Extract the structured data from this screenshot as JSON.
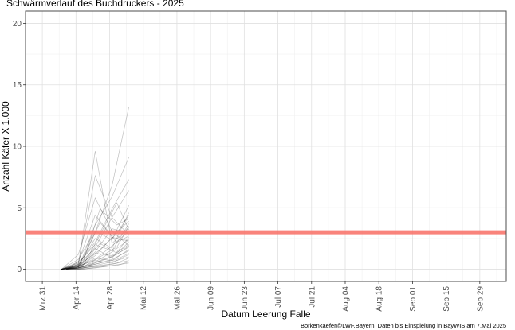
{
  "chart_data": {
    "type": "line",
    "title": "Schwärmverlauf des Buchdruckers - 2025",
    "xlabel": "Datum Leerung Falle",
    "ylabel": "Anzahl Käfer X 1.000",
    "caption": "Borkenkaefer@LWF.Bayern, Daten bis Einspielung in BayWIS am 7.Mai 2025",
    "xlim": [
      "2025-03-24",
      "2025-10-10"
    ],
    "ylim": [
      -1,
      21
    ],
    "x_tick_labels": [
      "Mrz 31",
      "Apr 14",
      "Apr 28",
      "Mai 12",
      "Mai 26",
      "Jun 09",
      "Jun 23",
      "Jul 07",
      "Jul 21",
      "Aug 04",
      "Aug 18",
      "Sep 01",
      "Sep 15",
      "Sep 29"
    ],
    "x_tick_dates": [
      "2025-03-31",
      "2025-04-14",
      "2025-04-28",
      "2025-05-12",
      "2025-05-26",
      "2025-06-09",
      "2025-06-23",
      "2025-07-07",
      "2025-07-21",
      "2025-08-04",
      "2025-08-18",
      "2025-09-01",
      "2025-09-15",
      "2025-09-29"
    ],
    "y_ticks": [
      0,
      5,
      10,
      15,
      20
    ],
    "threshold": {
      "value": 3,
      "color": "#f8766d"
    },
    "grid": true,
    "legend": "none",
    "series_color": "#000000",
    "series": [
      {
        "x": [
          "2025-04-08",
          "2025-04-15",
          "2025-04-22",
          "2025-04-29",
          "2025-05-06"
        ],
        "values": [
          0.0,
          0.3,
          9.6,
          2.1,
          3.4
        ]
      },
      {
        "x": [
          "2025-04-08",
          "2025-04-15",
          "2025-04-22",
          "2025-04-29",
          "2025-05-06"
        ],
        "values": [
          0.0,
          0.2,
          3.0,
          6.8,
          13.2
        ]
      },
      {
        "x": [
          "2025-04-08",
          "2025-04-15",
          "2025-04-22",
          "2025-04-29",
          "2025-05-06"
        ],
        "values": [
          0.0,
          0.5,
          7.6,
          4.2,
          2.8
        ]
      },
      {
        "x": [
          "2025-04-08",
          "2025-04-15",
          "2025-04-22",
          "2025-04-29",
          "2025-05-06"
        ],
        "values": [
          0.0,
          1.2,
          5.8,
          3.1,
          1.9
        ]
      },
      {
        "x": [
          "2025-04-08",
          "2025-04-15",
          "2025-04-22",
          "2025-04-29",
          "2025-05-06"
        ],
        "values": [
          0.0,
          0.4,
          2.2,
          4.9,
          7.3
        ]
      },
      {
        "x": [
          "2025-04-08",
          "2025-04-15",
          "2025-04-22",
          "2025-04-29",
          "2025-05-06"
        ],
        "values": [
          0.0,
          0.1,
          3.6,
          5.9,
          9.1
        ]
      },
      {
        "x": [
          "2025-04-08",
          "2025-04-15",
          "2025-04-22",
          "2025-04-29",
          "2025-05-06"
        ],
        "values": [
          0.0,
          0.6,
          4.4,
          2.7,
          3.9
        ]
      },
      {
        "x": [
          "2025-04-08",
          "2025-04-15",
          "2025-04-22",
          "2025-04-29",
          "2025-05-06"
        ],
        "values": [
          0.0,
          0.2,
          1.8,
          4.2,
          6.4
        ]
      },
      {
        "x": [
          "2025-04-08",
          "2025-04-15",
          "2025-04-22",
          "2025-04-29",
          "2025-05-06"
        ],
        "values": [
          0.0,
          0.8,
          3.1,
          2.4,
          5.2
        ]
      },
      {
        "x": [
          "2025-04-08",
          "2025-04-15",
          "2025-04-22",
          "2025-04-29",
          "2025-05-06"
        ],
        "values": [
          0.0,
          0.3,
          2.5,
          1.7,
          4.6
        ]
      },
      {
        "x": [
          "2025-04-08",
          "2025-04-15",
          "2025-04-22",
          "2025-04-29",
          "2025-05-06"
        ],
        "values": [
          0.0,
          0.2,
          1.4,
          3.3,
          2.9
        ]
      },
      {
        "x": [
          "2025-04-08",
          "2025-04-15",
          "2025-04-22",
          "2025-04-29",
          "2025-05-06"
        ],
        "values": [
          0.0,
          0.5,
          2.0,
          1.5,
          3.7
        ]
      },
      {
        "x": [
          "2025-04-08",
          "2025-04-15",
          "2025-04-22",
          "2025-04-29",
          "2025-05-06"
        ],
        "values": [
          0.0,
          0.1,
          1.1,
          2.6,
          2.3
        ]
      },
      {
        "x": [
          "2025-04-08",
          "2025-04-15",
          "2025-04-22",
          "2025-04-29",
          "2025-05-06"
        ],
        "values": [
          0.0,
          0.4,
          1.7,
          0.9,
          2.6
        ]
      },
      {
        "x": [
          "2025-04-08",
          "2025-04-15",
          "2025-04-22",
          "2025-04-29",
          "2025-05-06"
        ],
        "values": [
          0.0,
          0.2,
          0.8,
          1.9,
          3.1
        ]
      },
      {
        "x": [
          "2025-04-08",
          "2025-04-15",
          "2025-04-22",
          "2025-04-29",
          "2025-05-06"
        ],
        "values": [
          0.0,
          0.3,
          1.3,
          1.1,
          2.0
        ]
      },
      {
        "x": [
          "2025-04-08",
          "2025-04-15",
          "2025-04-22",
          "2025-04-29",
          "2025-05-06"
        ],
        "values": [
          0.0,
          0.1,
          0.6,
          1.4,
          2.4
        ]
      },
      {
        "x": [
          "2025-04-08",
          "2025-04-15",
          "2025-04-22",
          "2025-04-29",
          "2025-05-06"
        ],
        "values": [
          0.0,
          0.2,
          0.9,
          0.7,
          1.6
        ]
      },
      {
        "x": [
          "2025-04-08",
          "2025-04-15",
          "2025-04-22",
          "2025-04-29",
          "2025-05-06"
        ],
        "values": [
          0.0,
          0.1,
          0.5,
          1.0,
          1.8
        ]
      },
      {
        "x": [
          "2025-04-08",
          "2025-04-15",
          "2025-04-22",
          "2025-04-29",
          "2025-05-06"
        ],
        "values": [
          0.0,
          0.3,
          0.7,
          0.5,
          1.2
        ]
      },
      {
        "x": [
          "2025-04-08",
          "2025-04-15",
          "2025-04-22",
          "2025-04-29",
          "2025-05-06"
        ],
        "values": [
          0.0,
          0.1,
          0.4,
          0.8,
          1.5
        ]
      },
      {
        "x": [
          "2025-04-08",
          "2025-04-15",
          "2025-04-22",
          "2025-04-29",
          "2025-05-06"
        ],
        "values": [
          0.0,
          0.0,
          0.3,
          0.6,
          1.0
        ]
      },
      {
        "x": [
          "2025-04-08",
          "2025-04-15",
          "2025-04-22",
          "2025-04-29",
          "2025-05-06"
        ],
        "values": [
          0.0,
          0.1,
          0.2,
          0.4,
          0.7
        ]
      },
      {
        "x": [
          "2025-04-08",
          "2025-04-15",
          "2025-04-22",
          "2025-04-29",
          "2025-05-06"
        ],
        "values": [
          0.0,
          0.0,
          0.1,
          0.3,
          0.5
        ]
      },
      {
        "x": [
          "2025-04-10",
          "2025-04-17",
          "2025-04-24",
          "2025-05-01",
          "2025-05-06"
        ],
        "values": [
          0.0,
          0.6,
          4.9,
          3.6,
          4.1
        ]
      },
      {
        "x": [
          "2025-04-10",
          "2025-04-17",
          "2025-04-24",
          "2025-05-01",
          "2025-05-06"
        ],
        "values": [
          0.0,
          0.3,
          2.8,
          5.4,
          3.2
        ]
      },
      {
        "x": [
          "2025-04-10",
          "2025-04-17",
          "2025-04-24",
          "2025-05-01",
          "2025-05-06"
        ],
        "values": [
          0.0,
          0.9,
          3.8,
          2.2,
          2.7
        ]
      },
      {
        "x": [
          "2025-04-10",
          "2025-04-17",
          "2025-04-24",
          "2025-05-01",
          "2025-05-06"
        ],
        "values": [
          0.0,
          0.4,
          1.6,
          2.9,
          4.4
        ]
      },
      {
        "x": [
          "2025-04-10",
          "2025-04-17",
          "2025-04-24",
          "2025-05-01",
          "2025-05-06"
        ],
        "values": [
          0.0,
          0.2,
          1.0,
          1.8,
          3.5
        ]
      },
      {
        "x": [
          "2025-04-10",
          "2025-04-17",
          "2025-04-24",
          "2025-05-01",
          "2025-05-06"
        ],
        "values": [
          0.0,
          0.5,
          2.1,
          1.3,
          2.2
        ]
      },
      {
        "x": [
          "2025-04-10",
          "2025-04-17",
          "2025-04-24",
          "2025-05-01",
          "2025-05-06"
        ],
        "values": [
          0.0,
          0.1,
          0.7,
          1.2,
          1.9
        ]
      },
      {
        "x": [
          "2025-04-10",
          "2025-04-17",
          "2025-04-24",
          "2025-05-01",
          "2025-05-06"
        ],
        "values": [
          0.0,
          0.2,
          0.5,
          0.8,
          1.3
        ]
      },
      {
        "x": [
          "2025-04-10",
          "2025-04-17",
          "2025-04-24",
          "2025-05-01",
          "2025-05-06"
        ],
        "values": [
          0.0,
          0.1,
          0.3,
          0.5,
          0.9
        ]
      },
      {
        "x": [
          "2025-04-10",
          "2025-04-17",
          "2025-04-24",
          "2025-05-01",
          "2025-05-06"
        ],
        "values": [
          0.0,
          0.0,
          0.2,
          0.3,
          0.6
        ]
      }
    ]
  }
}
